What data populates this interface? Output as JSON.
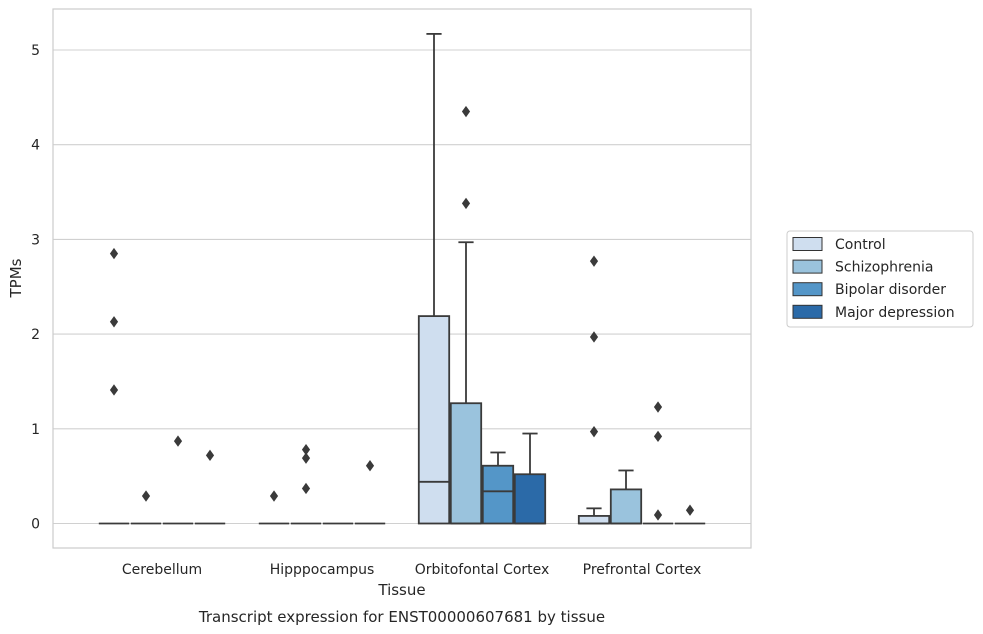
{
  "chart_data": {
    "type": "box",
    "caption": "Transcript expression for ENST00000607681 by tissue",
    "xlabel": "Tissue",
    "ylabel": "TPMs",
    "ylim": [
      -0.25,
      5.4
    ],
    "yticks": [
      0,
      1,
      2,
      3,
      4,
      5
    ],
    "grid": "horizontal",
    "legend_position": "right",
    "categories": [
      "Cerebellum",
      "Hipppocampus",
      "Orbitofontal Cortex",
      "Prefrontal Cortex"
    ],
    "series": [
      {
        "name": "Control",
        "color": "#cfdeef",
        "boxes": [
          {
            "category": "Cerebellum",
            "q1": 0,
            "median": 0,
            "q3": 0,
            "whisker_low": 0,
            "whisker_high": 0,
            "outliers": [
              1.41,
              2.13,
              2.85
            ]
          },
          {
            "category": "Hipppocampus",
            "q1": 0,
            "median": 0,
            "q3": 0,
            "whisker_low": 0,
            "whisker_high": 0,
            "outliers": [
              0.29
            ]
          },
          {
            "category": "Orbitofontal Cortex",
            "q1": 0,
            "median": 0.44,
            "q3": 2.19,
            "whisker_low": 0,
            "whisker_high": 5.17,
            "outliers": []
          },
          {
            "category": "Prefrontal Cortex",
            "q1": 0,
            "median": 0,
            "q3": 0.08,
            "whisker_low": 0,
            "whisker_high": 0.16,
            "outliers": [
              0.97,
              1.97,
              2.77
            ]
          }
        ]
      },
      {
        "name": "Schizophrenia",
        "color": "#9ac3dd",
        "boxes": [
          {
            "category": "Cerebellum",
            "q1": 0,
            "median": 0,
            "q3": 0,
            "whisker_low": 0,
            "whisker_high": 0,
            "outliers": [
              0.29
            ]
          },
          {
            "category": "Hipppocampus",
            "q1": 0,
            "median": 0,
            "q3": 0,
            "whisker_low": 0,
            "whisker_high": 0,
            "outliers": [
              0.37,
              0.69,
              0.78
            ]
          },
          {
            "category": "Orbitofontal Cortex",
            "q1": 0,
            "median": 0,
            "q3": 1.27,
            "whisker_low": 0,
            "whisker_high": 2.97,
            "outliers": [
              3.38,
              4.35
            ]
          },
          {
            "category": "Prefrontal Cortex",
            "q1": 0,
            "median": 0,
            "q3": 0.36,
            "whisker_low": 0,
            "whisker_high": 0.56,
            "outliers": []
          }
        ]
      },
      {
        "name": "Bipolar disorder",
        "color": "#5496c8",
        "boxes": [
          {
            "category": "Cerebellum",
            "q1": 0,
            "median": 0,
            "q3": 0,
            "whisker_low": 0,
            "whisker_high": 0,
            "outliers": [
              0.87
            ]
          },
          {
            "category": "Hipppocampus",
            "q1": 0,
            "median": 0,
            "q3": 0,
            "whisker_low": 0,
            "whisker_high": 0,
            "outliers": []
          },
          {
            "category": "Orbitofontal Cortex",
            "q1": 0,
            "median": 0.34,
            "q3": 0.61,
            "whisker_low": 0,
            "whisker_high": 0.75,
            "outliers": []
          },
          {
            "category": "Prefrontal Cortex",
            "q1": 0,
            "median": 0,
            "q3": 0,
            "whisker_low": 0,
            "whisker_high": 0,
            "outliers": [
              0.09,
              0.92,
              1.23
            ]
          }
        ]
      },
      {
        "name": "Major depression",
        "color": "#2b6aa8",
        "boxes": [
          {
            "category": "Cerebellum",
            "q1": 0,
            "median": 0,
            "q3": 0,
            "whisker_low": 0,
            "whisker_high": 0,
            "outliers": [
              0.72
            ]
          },
          {
            "category": "Hipppocampus",
            "q1": 0,
            "median": 0,
            "q3": 0,
            "whisker_low": 0,
            "whisker_high": 0,
            "outliers": [
              0.61
            ]
          },
          {
            "category": "Orbitofontal Cortex",
            "q1": 0,
            "median": 0,
            "q3": 0.52,
            "whisker_low": 0,
            "whisker_high": 0.95,
            "outliers": []
          },
          {
            "category": "Prefrontal Cortex",
            "q1": 0,
            "median": 0,
            "q3": 0,
            "whisker_low": 0,
            "whisker_high": 0,
            "outliers": [
              0.14
            ]
          }
        ]
      }
    ]
  }
}
